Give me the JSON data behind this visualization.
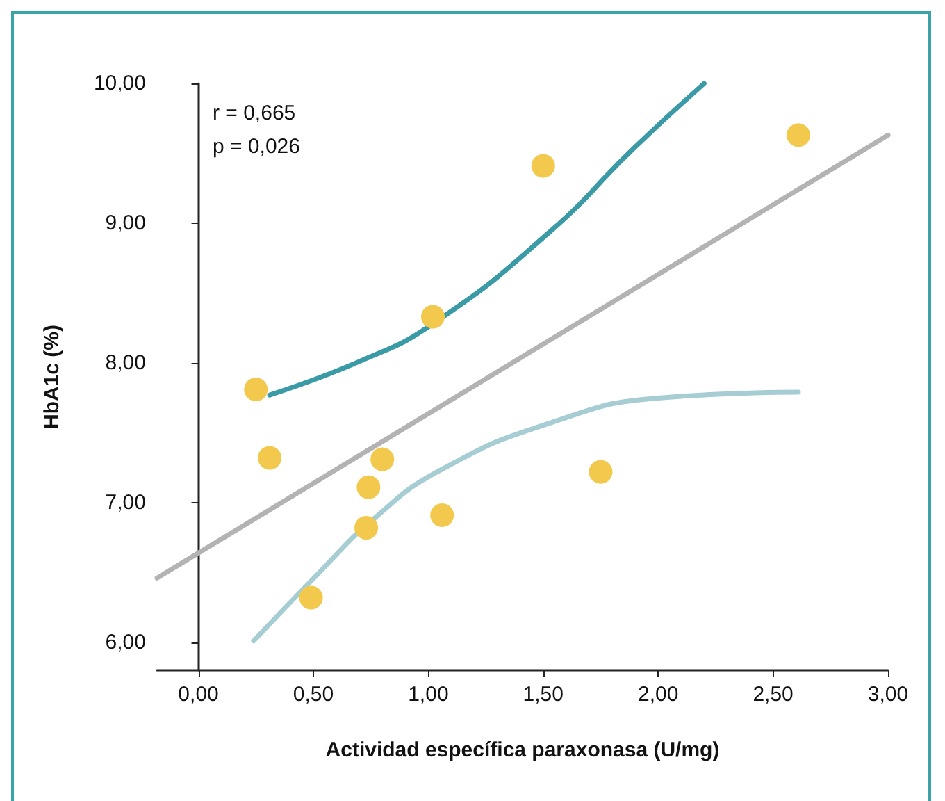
{
  "chart_data": {
    "type": "scatter",
    "xlabel": "Actividad específica paraxonasa (U/mg)",
    "ylabel": "HbA1c (%)",
    "annotations": [
      "r = 0,665",
      "p = 0,026"
    ],
    "xlim": [
      -0.18,
      3.0
    ],
    "ylim": [
      5.8,
      10.0
    ],
    "xticks": [
      {
        "value": 0,
        "label": "0,00"
      },
      {
        "value": 0.5,
        "label": "0,50"
      },
      {
        "value": 1,
        "label": "1,00"
      },
      {
        "value": 1.5,
        "label": "1,50"
      },
      {
        "value": 2,
        "label": "2,00"
      },
      {
        "value": 2.5,
        "label": "2,50"
      },
      {
        "value": 3,
        "label": "3,00"
      }
    ],
    "yticks": [
      {
        "value": 6,
        "label": "6,00"
      },
      {
        "value": 7,
        "label": "7,00"
      },
      {
        "value": 8,
        "label": "8,00"
      },
      {
        "value": 9,
        "label": "9,00"
      },
      {
        "value": 10,
        "label": "10,00"
      }
    ],
    "grid": false,
    "series": [
      {
        "type": "line",
        "color": "#b3b3b3",
        "marker": "none",
        "x": [
          -0.18,
          3.0
        ],
        "values": [
          6.46,
          9.63
        ]
      },
      {
        "type": "line",
        "color": "#3a9aa6",
        "marker": "none",
        "x": [
          0.31,
          0.7,
          1.02,
          1.53,
          1.89,
          2.2
        ],
        "values": [
          7.77,
          8.01,
          8.28,
          8.94,
          9.53,
          10.0
        ]
      },
      {
        "type": "line",
        "color": "#a5cdd3",
        "marker": "none",
        "x": [
          0.24,
          0.52,
          0.76,
          1.05,
          1.53,
          2.01,
          2.61
        ],
        "values": [
          6.01,
          6.49,
          6.88,
          7.23,
          7.57,
          7.75,
          7.79
        ]
      },
      {
        "color": "#f2c94c",
        "marker": "circle",
        "x": [
          0.25,
          0.31,
          0.49,
          0.73,
          0.74,
          0.8,
          1.02,
          1.06,
          1.5,
          1.75,
          2.61
        ],
        "values": [
          7.81,
          7.32,
          6.32,
          6.82,
          7.11,
          7.31,
          8.33,
          6.91,
          9.41,
          7.22,
          9.63
        ]
      }
    ]
  }
}
